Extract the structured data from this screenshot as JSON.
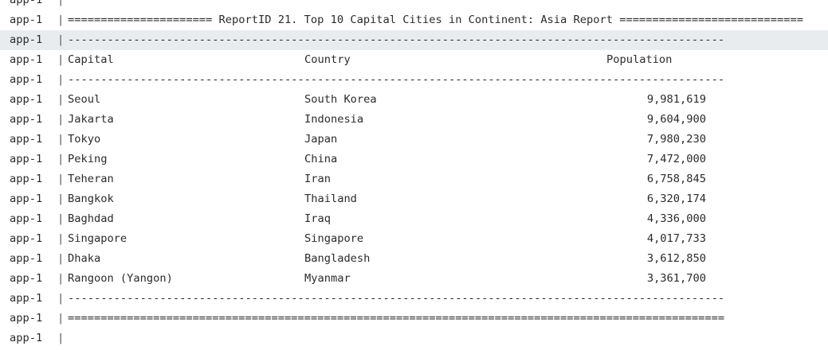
{
  "log": {
    "prefix": "app-1",
    "separator": "|",
    "title_line": "====================== ReportID 21. Top 10 Capital Cities in Continent: Asia Report ============================",
    "rule_dash": "----------------------------------------------------------------------------------------------------",
    "rule_double": "====================================================================================================",
    "table": {
      "header": [
        "Capital",
        "Country",
        "Population"
      ],
      "rows": [
        [
          "Seoul",
          "South Korea",
          "9,981,619"
        ],
        [
          "Jakarta",
          "Indonesia",
          "9,604,900"
        ],
        [
          "Tokyo",
          "Japan",
          "7,980,230"
        ],
        [
          "Peking",
          "China",
          "7,472,000"
        ],
        [
          "Teheran",
          "Iran",
          "6,758,845"
        ],
        [
          "Bangkok",
          "Thailand",
          "6,320,174"
        ],
        [
          "Baghdad",
          "Iraq",
          "4,336,000"
        ],
        [
          "Singapore",
          "Singapore",
          "4,017,733"
        ],
        [
          "Dhaka",
          "Bangladesh",
          "3,612,850"
        ],
        [
          "Rangoon (Yangon)",
          "Myanmar",
          "3,361,700"
        ]
      ]
    }
  }
}
